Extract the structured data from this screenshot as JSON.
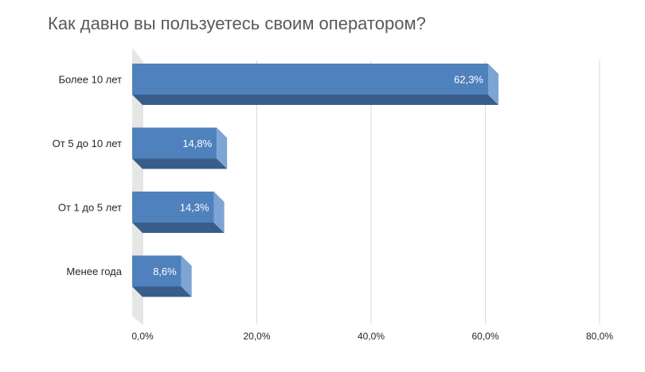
{
  "chart_data": {
    "type": "bar",
    "orientation": "horizontal",
    "title": "Как давно вы пользуетесь своим оператором?",
    "categories": [
      "Более 10 лет",
      "От 5 до 10 лет",
      "От 1 до 5 лет",
      "Менее года"
    ],
    "values": [
      62.3,
      14.8,
      14.3,
      8.6
    ],
    "data_labels": [
      "62,3%",
      "14,8%",
      "14,3%",
      "8,6%"
    ],
    "x_ticks": [
      0,
      20,
      40,
      60,
      80
    ],
    "x_tick_labels": [
      "0,0%",
      "20,0%",
      "40,0%",
      "60,0%",
      "80,0%"
    ],
    "xlim": [
      0,
      80
    ],
    "grid": true,
    "legend": "none",
    "style": "3d",
    "colors": {
      "bar_front": "#4f81bd",
      "bar_bottom": "#385d8a",
      "bar_side": "#7ea4d4",
      "grid": "#d9d9d9",
      "wall": "#e6e6e6"
    }
  }
}
